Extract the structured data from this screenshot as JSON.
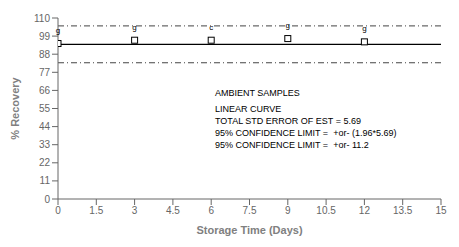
{
  "chart_data": {
    "type": "scatter",
    "x_label": "Storage Time (Days)",
    "y_label": "% Recovery",
    "xlim": [
      0,
      15
    ],
    "ylim": [
      0,
      110
    ],
    "xticks": [
      0.0,
      1.5,
      3.0,
      4.5,
      6.0,
      7.5,
      9.0,
      10.5,
      12.0,
      13.5,
      15.0
    ],
    "yticks": [
      0,
      11,
      22,
      33,
      44,
      55,
      66,
      77,
      88,
      99,
      110
    ],
    "x": [
      0.0,
      3.0,
      6.0,
      9.0,
      12.0
    ],
    "values": [
      94.5,
      96.5,
      96.5,
      97.5,
      95.5
    ],
    "point_labels": [
      "g",
      "g",
      "c",
      "g",
      "g"
    ],
    "color": "#000000",
    "marker": "square",
    "grid": false,
    "reference_lines": [
      {
        "y": 94.0,
        "line_style": "solid",
        "color": "#000000"
      },
      {
        "y": 105.2,
        "line_style": "dashdot",
        "color": "#444444"
      },
      {
        "y": 82.8,
        "line_style": "dashdot",
        "color": "#444444"
      }
    ],
    "annotations": [
      "AMBIENT SAMPLES",
      "LINEAR CURVE",
      "TOTAL STD ERROR OF EST = 5.69",
      "95% CONFIDENCE LIMIT =  +or- (1.96*5.69)",
      "95% CONFIDENCE LIMIT =  +or- 11.2"
    ]
  }
}
